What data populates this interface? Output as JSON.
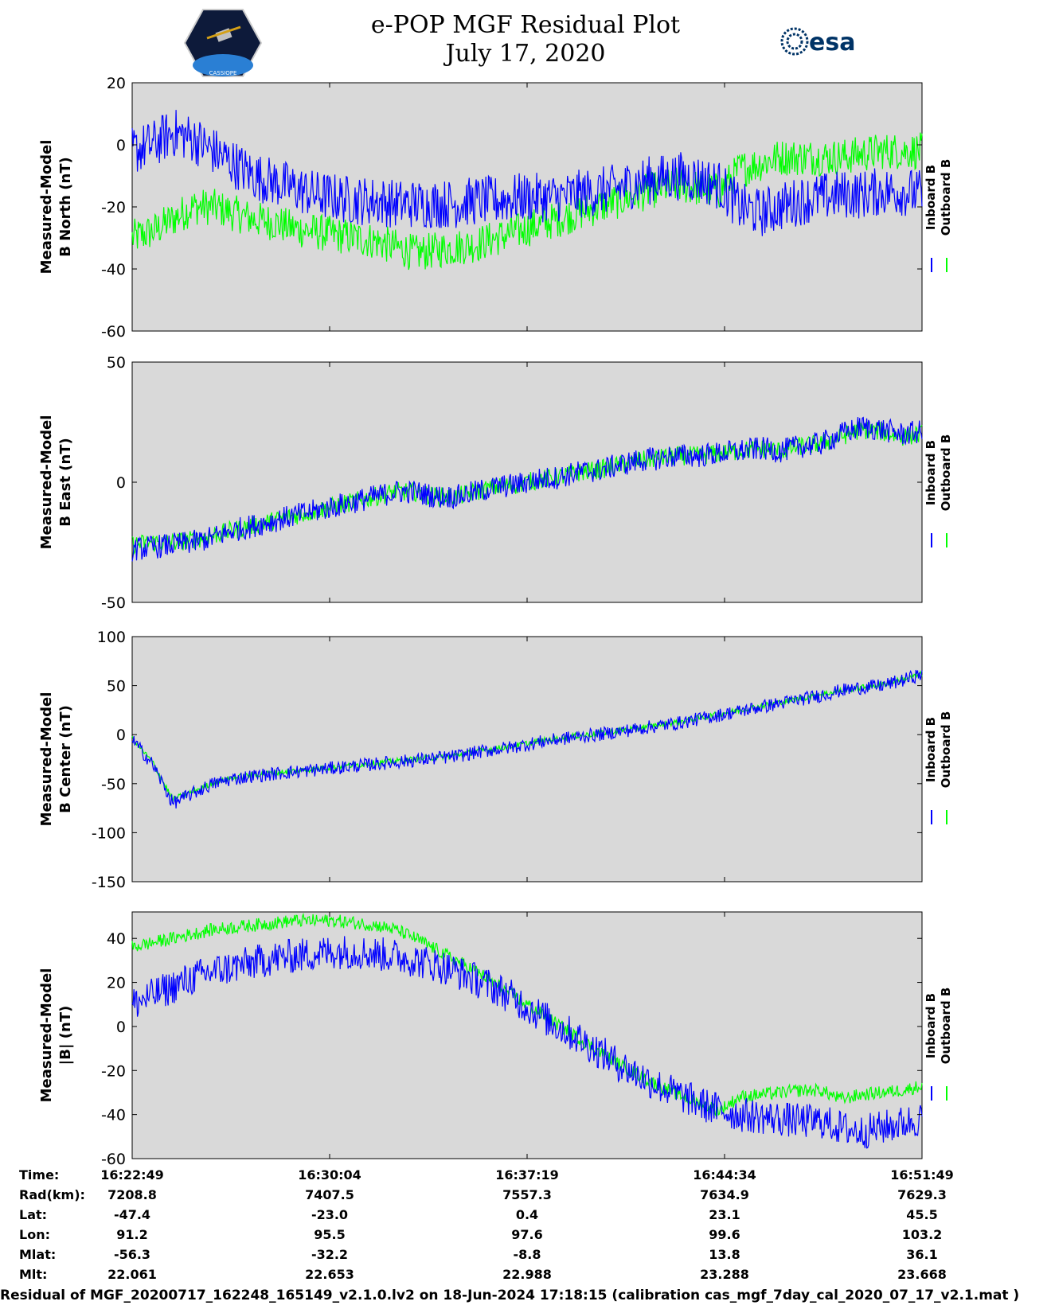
{
  "title": {
    "line1": "e-POP MGF Residual Plot",
    "line2": "July 17, 2020"
  },
  "logos": {
    "mission_logo_text": "CASSIOPE",
    "esa_logo_text": "esa"
  },
  "colors": {
    "inboard": "#0000ff",
    "outboard": "#00ff00",
    "panel_bg": "#d9d9d9"
  },
  "chart_data": [
    {
      "type": "line",
      "ylabel_line1": "Measured-Model",
      "ylabel_line2": "B North (nT)",
      "ylim": [
        -60,
        20
      ],
      "yticks": [
        20,
        0,
        -20,
        -40,
        -60
      ],
      "series": [
        {
          "name": "Inboard B",
          "color": "#0000ff",
          "values": [
            -2,
            0,
            4,
            2,
            -2,
            -6,
            -10,
            -12,
            -14,
            -16,
            -17,
            -18,
            -18,
            -19,
            -19,
            -19,
            -19,
            -18,
            -18,
            -17,
            -17,
            -17,
            -16,
            -15,
            -14,
            -12,
            -11,
            -10,
            -11,
            -13,
            -20,
            -22,
            -20,
            -18,
            -17,
            -16,
            -16,
            -15,
            -15,
            -16
          ],
          "noise": 8
        },
        {
          "name": "Outboard B",
          "color": "#00ff00",
          "values": [
            -30,
            -28,
            -24,
            -20,
            -20,
            -22,
            -24,
            -25,
            -27,
            -28,
            -29,
            -30,
            -31,
            -33,
            -35,
            -34,
            -33,
            -32,
            -30,
            -28,
            -26,
            -24,
            -22,
            -20,
            -18,
            -16,
            -14,
            -13,
            -14,
            -15,
            -8,
            -6,
            -4,
            -4,
            -4,
            -4,
            -3,
            -2,
            -2,
            -2
          ],
          "noise": 6
        }
      ]
    },
    {
      "type": "line",
      "ylabel_line1": "Measured-Model",
      "ylabel_line2": "B East (nT)",
      "ylim": [
        -50,
        50
      ],
      "yticks": [
        50,
        0,
        -50
      ],
      "series": [
        {
          "name": "Inboard B",
          "color": "#0000ff",
          "values": [
            -28,
            -27,
            -26,
            -25,
            -23,
            -20,
            -18,
            -16,
            -14,
            -12,
            -10,
            -8,
            -6,
            -4,
            -4,
            -6,
            -6,
            -4,
            -2,
            -1,
            1,
            2,
            4,
            5,
            7,
            9,
            10,
            11,
            11,
            12,
            13,
            14,
            13,
            15,
            16,
            20,
            23,
            22,
            20,
            21
          ],
          "noise": 5
        },
        {
          "name": "Outboard B",
          "color": "#00ff00",
          "values": [
            -26,
            -25,
            -25,
            -24,
            -22,
            -20,
            -18,
            -16,
            -14,
            -12,
            -10,
            -8,
            -6,
            -4,
            -4,
            -6,
            -6,
            -4,
            -2,
            -1,
            1,
            2,
            4,
            5,
            7,
            9,
            10,
            11,
            11,
            12,
            13,
            14,
            13,
            15,
            16,
            19,
            22,
            21,
            19,
            20
          ],
          "noise": 4
        }
      ]
    },
    {
      "type": "line",
      "ylabel_line1": "Measured-Model",
      "ylabel_line2": "B Center (nT)",
      "ylim": [
        -150,
        100
      ],
      "yticks": [
        100,
        50,
        0,
        -50,
        -100,
        -150
      ],
      "series": [
        {
          "name": "Inboard B",
          "color": "#0000ff",
          "values": [
            -5,
            -30,
            -70,
            -60,
            -50,
            -45,
            -42,
            -40,
            -38,
            -36,
            -34,
            -32,
            -30,
            -28,
            -26,
            -24,
            -22,
            -18,
            -15,
            -12,
            -8,
            -5,
            -2,
            0,
            3,
            6,
            9,
            12,
            16,
            20,
            24,
            28,
            32,
            36,
            40,
            45,
            48,
            50,
            55,
            62
          ],
          "noise": 7
        },
        {
          "name": "Outboard B",
          "color": "#00ff00",
          "values": [
            -4,
            -28,
            -66,
            -58,
            -49,
            -44,
            -41,
            -39,
            -37,
            -35,
            -33,
            -31,
            -29,
            -27,
            -25,
            -23,
            -21,
            -17,
            -14,
            -11,
            -7,
            -4,
            -1,
            1,
            4,
            7,
            10,
            13,
            17,
            21,
            25,
            29,
            33,
            37,
            41,
            45,
            48,
            51,
            56,
            62
          ],
          "noise": 3
        }
      ]
    },
    {
      "type": "line",
      "ylabel_line1": "Measured-Model",
      "ylabel_line2": "|B| (nT)",
      "ylim": [
        -60,
        52
      ],
      "yticks": [
        40,
        20,
        0,
        -20,
        -40,
        -60
      ],
      "series": [
        {
          "name": "Inboard B",
          "color": "#0000ff",
          "values": [
            10,
            14,
            18,
            22,
            25,
            27,
            29,
            31,
            32,
            33,
            34,
            34,
            33,
            32,
            30,
            28,
            25,
            21,
            17,
            12,
            6,
            0,
            -5,
            -11,
            -17,
            -22,
            -27,
            -31,
            -35,
            -38,
            -40,
            -41,
            -42,
            -43,
            -43,
            -46,
            -48,
            -46,
            -44,
            -42
          ],
          "noise": 8
        },
        {
          "name": "Outboard B",
          "color": "#00ff00",
          "values": [
            36,
            38,
            40,
            42,
            44,
            45,
            46,
            47,
            48,
            48,
            48,
            47,
            46,
            44,
            40,
            35,
            30,
            25,
            19,
            13,
            7,
            1,
            -5,
            -11,
            -17,
            -22,
            -27,
            -31,
            -35,
            -38,
            -32,
            -31,
            -30,
            -29,
            -29,
            -33,
            -31,
            -30,
            -29,
            -27
          ],
          "noise": 3
        }
      ]
    }
  ],
  "legend": {
    "inboard": "Inboard B",
    "outboard": "Outboard B"
  },
  "orbit_table": {
    "row_labels": [
      "Time:",
      "Rad(km):",
      "Lat:",
      "Lon:",
      "Mlat:",
      "Mlt:"
    ],
    "columns": [
      [
        "16:22:49",
        "7208.8",
        "-47.4",
        "91.2",
        "-56.3",
        "22.061"
      ],
      [
        "16:30:04",
        "7407.5",
        "-23.0",
        "95.5",
        "-32.2",
        "22.653"
      ],
      [
        "16:37:19",
        "7557.3",
        "0.4",
        "97.6",
        "-8.8",
        "22.988"
      ],
      [
        "16:44:34",
        "7634.9",
        "23.1",
        "99.6",
        "13.8",
        "23.288"
      ],
      [
        "16:51:49",
        "7629.3",
        "45.5",
        "103.2",
        "36.1",
        "23.668"
      ]
    ]
  },
  "footer": "Residual of MGF_20200717_162248_165149_v2.1.0.lv2 on 18-Jun-2024 17:18:15 (calibration cas_mgf_7day_cal_2020_07_17_v2.1.mat )"
}
